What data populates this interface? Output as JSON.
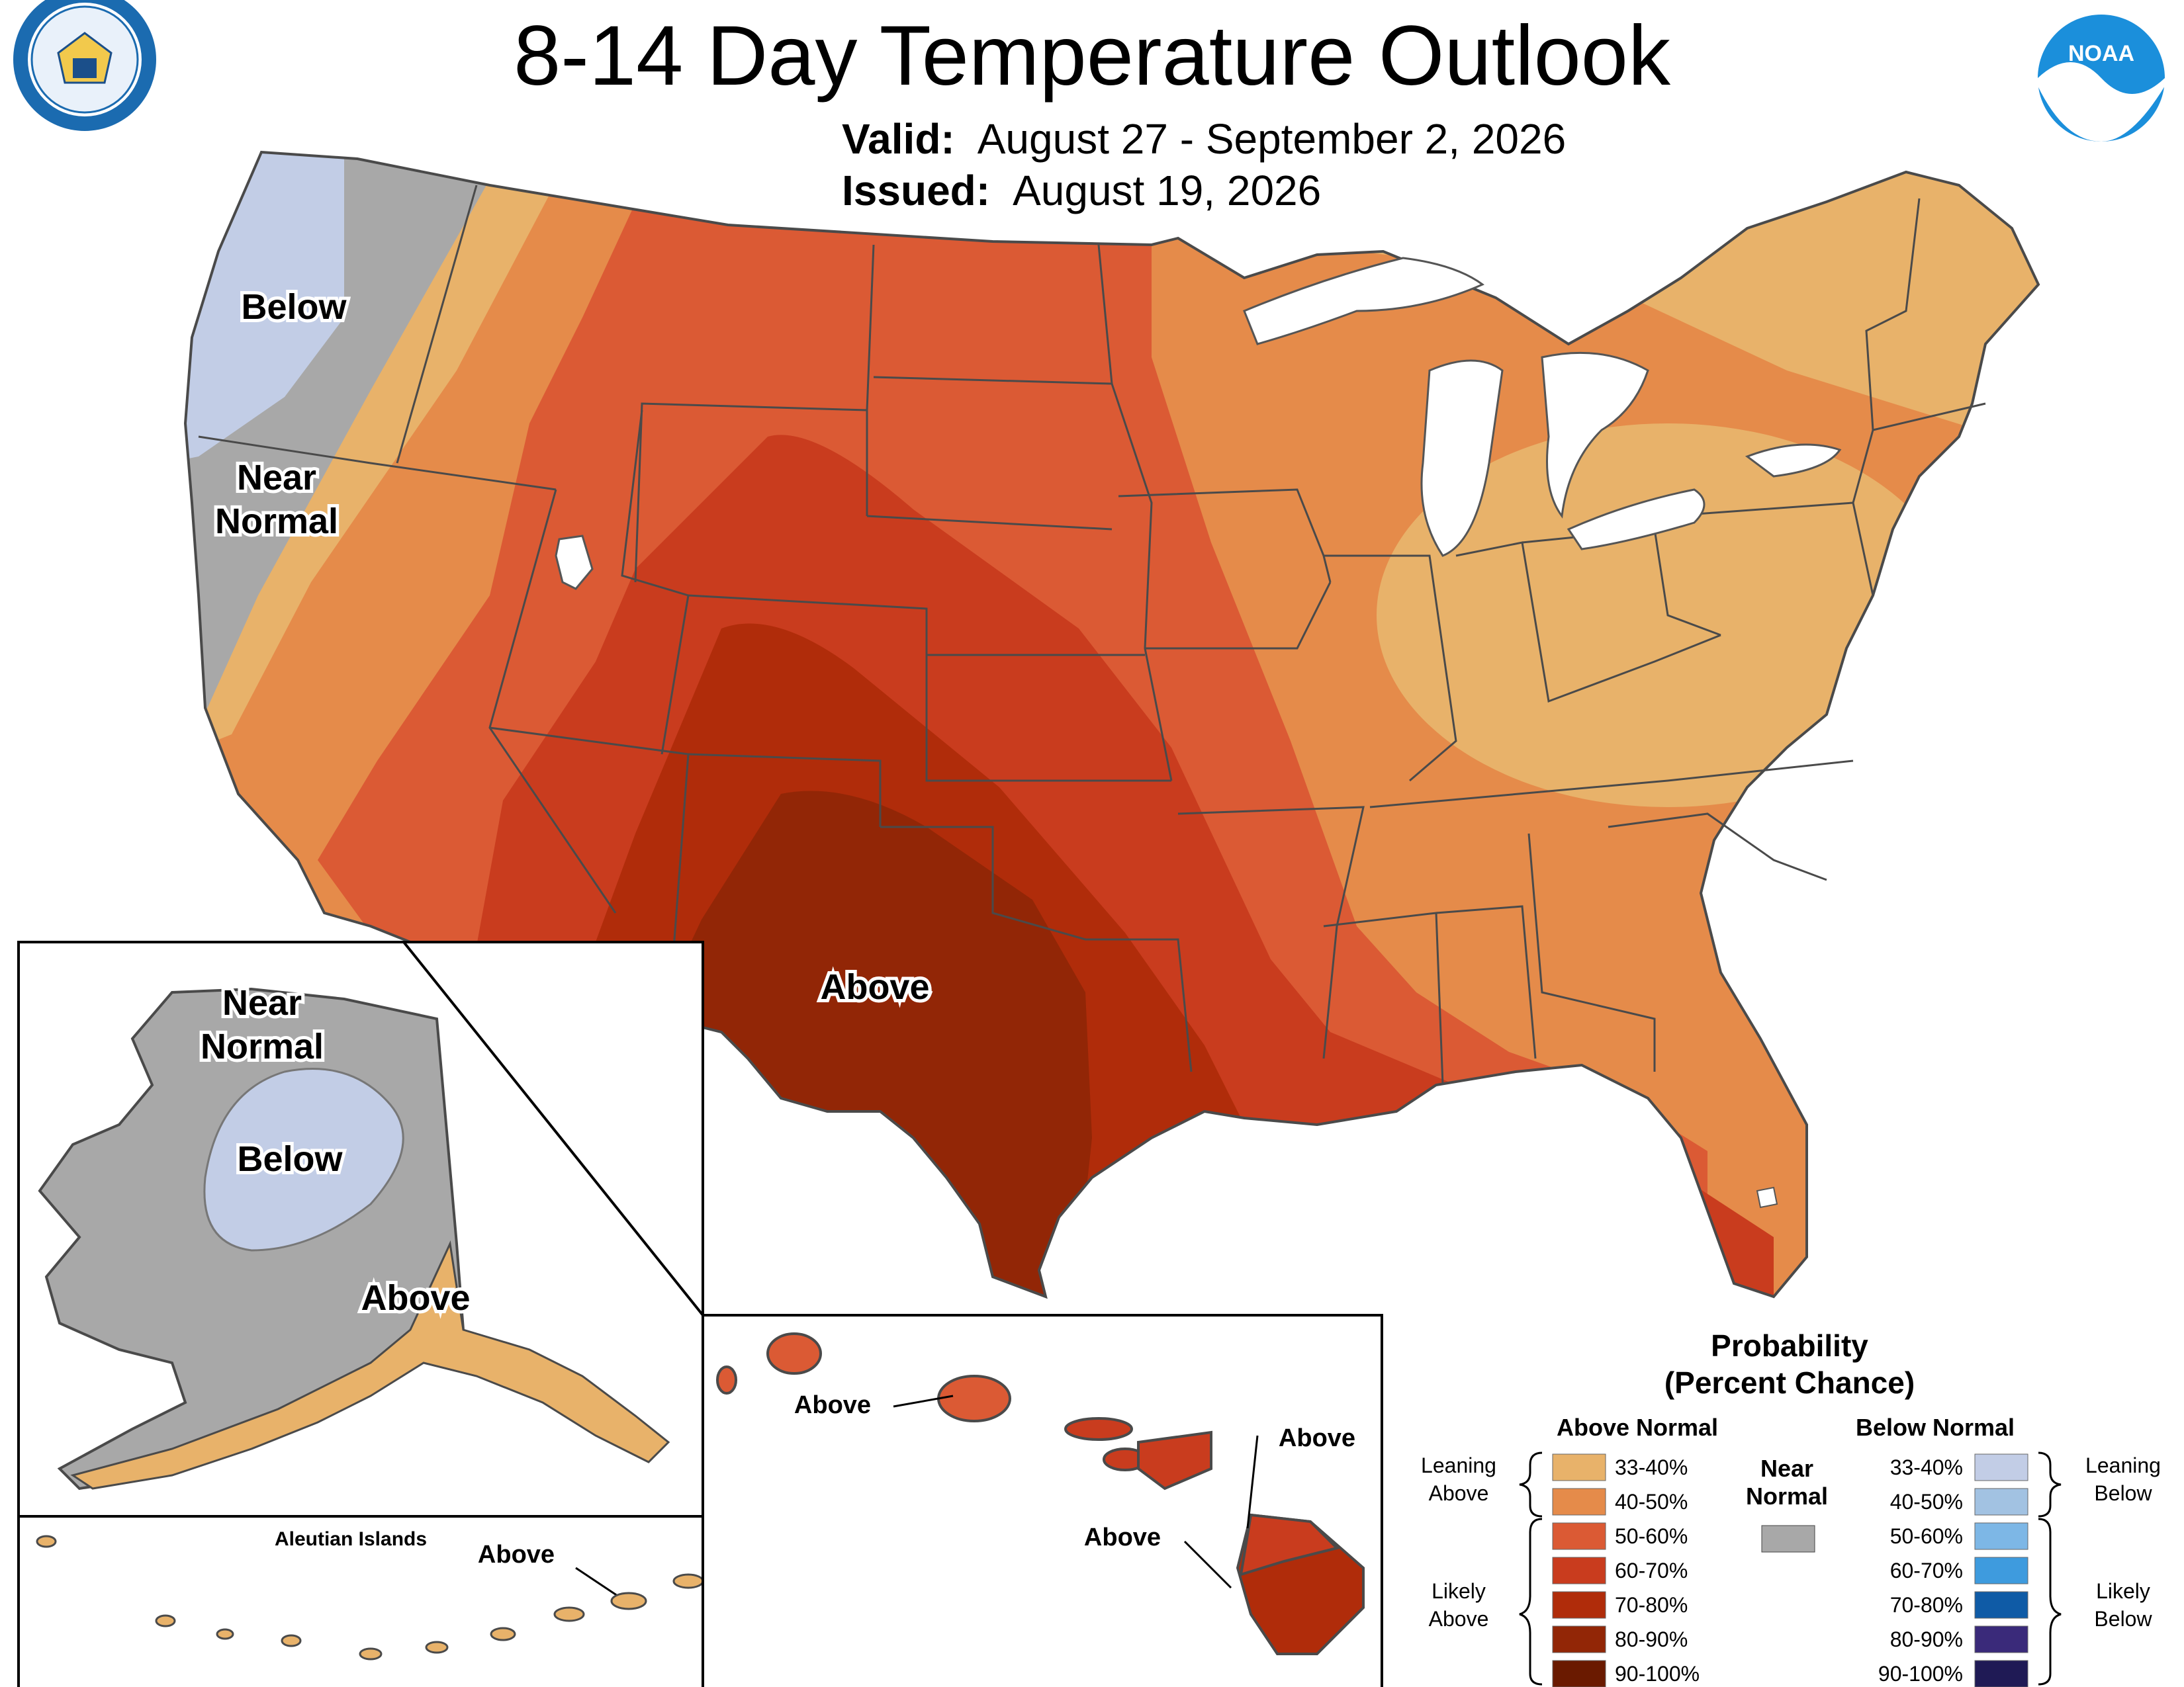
{
  "title": "8-14 Day Temperature Outlook",
  "valid_label": "Valid:",
  "valid_value": "August 27 - September 2, 2026",
  "issued_label": "Issued:",
  "issued_value": "August 19, 2026",
  "logos": {
    "left": {
      "icon": "department-of-commerce-seal",
      "ring_text": "DEPARTMENT OF COMMERCE • UNITED STATES OF AMERICA"
    },
    "right": {
      "icon": "noaa-logo",
      "text": "NOAA"
    }
  },
  "map_labels": {
    "conus_below": "Below",
    "conus_near_1": "Near",
    "conus_near_2": "Normal",
    "conus_above": "Above",
    "alaska_near_1": "Near",
    "alaska_near_2": "Normal",
    "alaska_below": "Below",
    "alaska_above": "Above",
    "aleutian_title": "Aleutian Islands",
    "aleutian_above": "Above",
    "hawaii_above_1": "Above",
    "hawaii_above_2": "Above",
    "hawaii_above_3": "Above"
  },
  "legend": {
    "title_1": "Probability",
    "title_2": "(Percent Chance)",
    "above_head": "Above Normal",
    "below_head": "Below Normal",
    "near_head_1": "Near",
    "near_head_2": "Normal",
    "leaning_above_1": "Leaning",
    "leaning_above_2": "Above",
    "likely_above_1": "Likely",
    "likely_above_2": "Above",
    "leaning_below_1": "Leaning",
    "leaning_below_2": "Below",
    "likely_below_1": "Likely",
    "likely_below_2": "Below",
    "above_classes": [
      {
        "label": "33-40%",
        "color": "#E8B26A"
      },
      {
        "label": "40-50%",
        "color": "#E58B4A"
      },
      {
        "label": "50-60%",
        "color": "#DB5A34"
      },
      {
        "label": "60-70%",
        "color": "#C93C1E"
      },
      {
        "label": "70-80%",
        "color": "#B02C0A"
      },
      {
        "label": "80-90%",
        "color": "#922606"
      },
      {
        "label": "90-100%",
        "color": "#6A1A00"
      }
    ],
    "near_color": "#A8A8A8",
    "below_classes": [
      {
        "label": "33-40%",
        "color": "#C2CDE6"
      },
      {
        "label": "40-50%",
        "color": "#A2C2E2"
      },
      {
        "label": "50-60%",
        "color": "#7DB7E6"
      },
      {
        "label": "60-70%",
        "color": "#3E9BDE"
      },
      {
        "label": "70-80%",
        "color": "#0F5BA6"
      },
      {
        "label": "80-90%",
        "color": "#3A2A7A"
      },
      {
        "label": "90-100%",
        "color": "#1F1A55"
      }
    ]
  }
}
